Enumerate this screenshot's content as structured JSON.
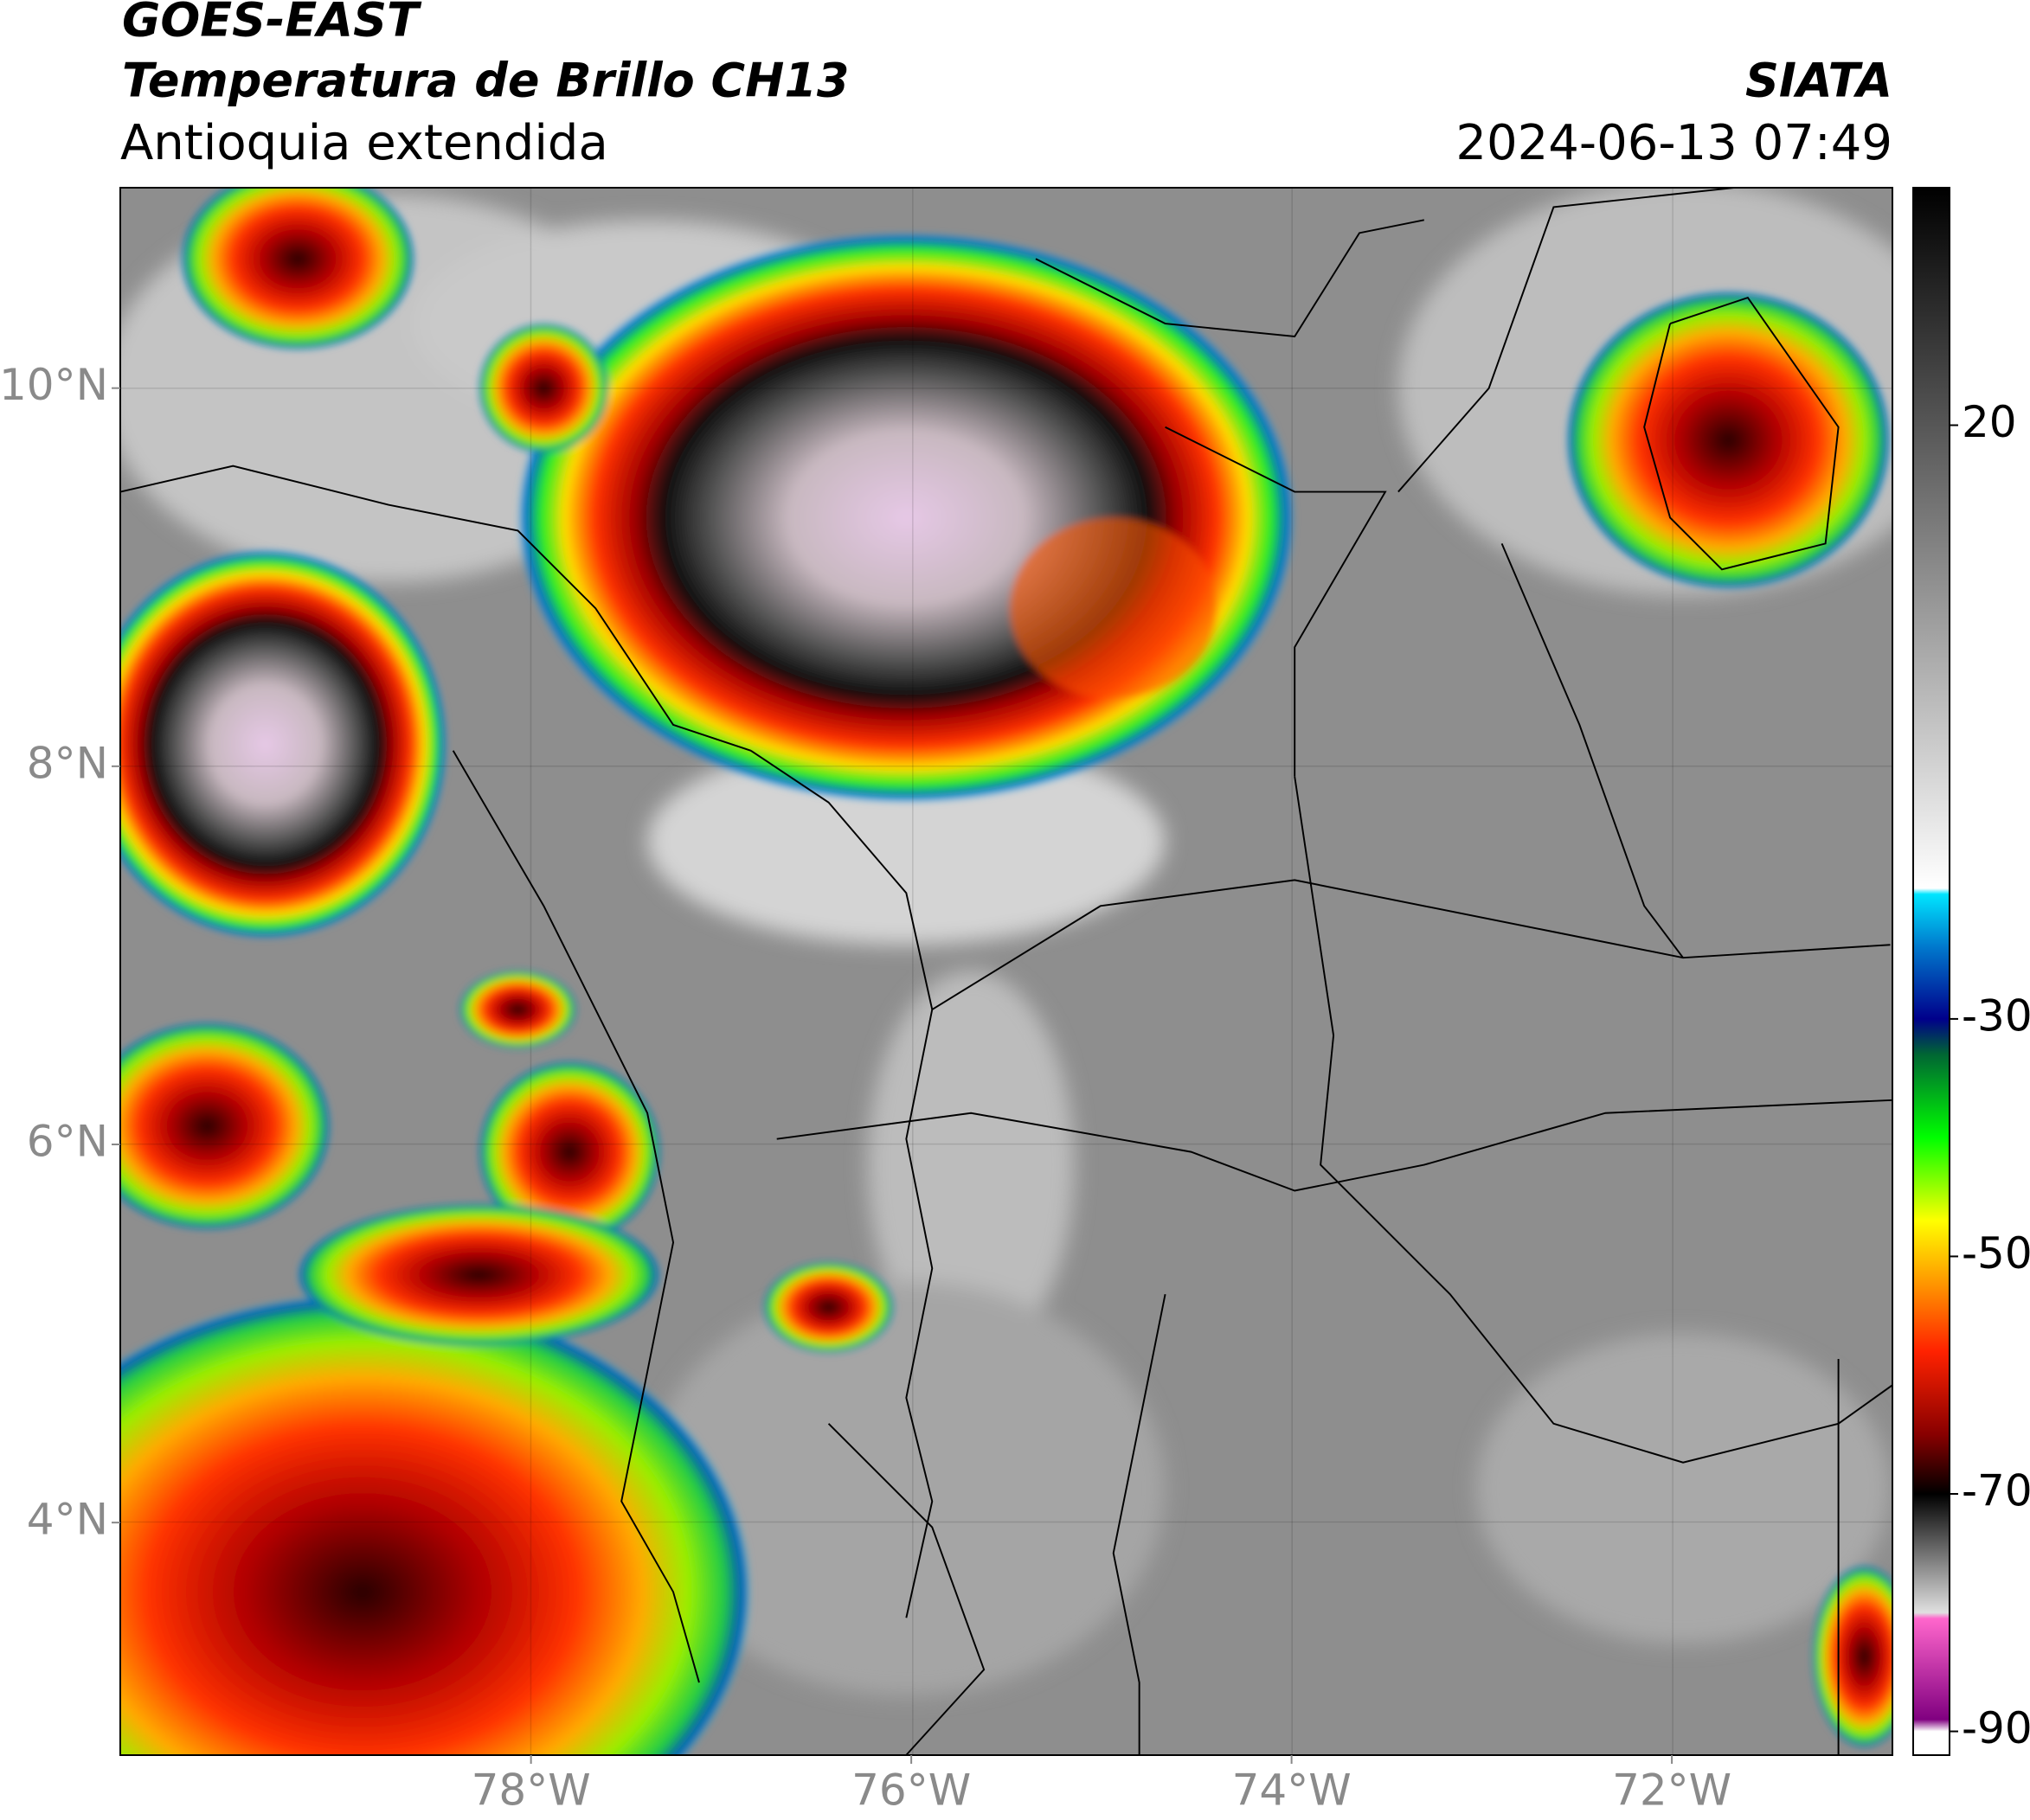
{
  "header": {
    "title": "GOES-EAST",
    "subtitle": "Temperatura de Brillo CH13",
    "region": "Antioquia extendida",
    "source": "SIATA",
    "datetime": "2024-06-13 07:49"
  },
  "map": {
    "latlim": [
      2.77,
      11.06
    ],
    "lonlim": [
      -80.16,
      -70.84
    ],
    "latticks": [
      {
        "value": 10,
        "label": "10°N"
      },
      {
        "value": 8,
        "label": "8°N"
      },
      {
        "value": 6,
        "label": "6°N"
      },
      {
        "value": 4,
        "label": "4°N"
      }
    ],
    "lonticks": [
      {
        "value": -78,
        "label": "78°W"
      },
      {
        "value": -76,
        "label": "76°W"
      },
      {
        "value": -74,
        "label": "74°W"
      },
      {
        "value": -72,
        "label": "72°W"
      }
    ]
  },
  "colorbar": {
    "lim": [
      -92,
      40
    ],
    "ticks": [
      20,
      -30,
      -50,
      -70,
      -90
    ],
    "colormap": [
      {
        "value": 40,
        "color": "#000000"
      },
      {
        "value": -19,
        "color": "#ffffff"
      },
      {
        "value": -19.5,
        "color": "#00e5ff"
      },
      {
        "value": -24,
        "color": "#0077cc"
      },
      {
        "value": -30,
        "color": "#00008b"
      },
      {
        "value": -33,
        "color": "#006633"
      },
      {
        "value": -40,
        "color": "#00ff00"
      },
      {
        "value": -47,
        "color": "#ffff00"
      },
      {
        "value": -53,
        "color": "#ff8800"
      },
      {
        "value": -58,
        "color": "#ff2200"
      },
      {
        "value": -65,
        "color": "#880000"
      },
      {
        "value": -70,
        "color": "#000000"
      },
      {
        "value": -76,
        "color": "#888888"
      },
      {
        "value": -80,
        "color": "#e0e0e0"
      },
      {
        "value": -80.5,
        "color": "#ff66cc"
      },
      {
        "value": -89,
        "color": "#800080"
      },
      {
        "value": -90,
        "color": "#ffffff"
      },
      {
        "value": -92,
        "color": "#ffffff"
      }
    ]
  }
}
